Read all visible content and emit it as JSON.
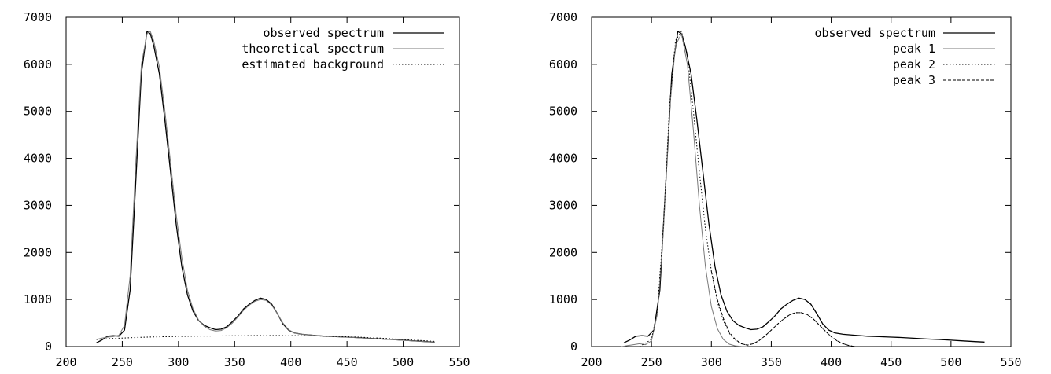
{
  "chart_data": [
    {
      "type": "line",
      "title": "",
      "xlabel": "",
      "ylabel": "",
      "xlim": [
        200,
        550
      ],
      "ylim": [
        0,
        7000
      ],
      "x_ticks": [
        200,
        250,
        300,
        350,
        400,
        450,
        500,
        550
      ],
      "y_ticks": [
        0,
        1000,
        2000,
        3000,
        4000,
        5000,
        6000,
        7000
      ],
      "grid": false,
      "legend_position": "top-right",
      "series": [
        {
          "name": "observed spectrum",
          "style": "solid",
          "color": "#000000",
          "x": [
            227,
            232,
            237,
            242,
            247,
            252,
            257,
            262,
            267,
            272,
            275,
            278,
            283,
            288,
            293,
            298,
            303,
            308,
            313,
            318,
            323,
            328,
            333,
            338,
            343,
            348,
            353,
            358,
            363,
            368,
            373,
            378,
            383,
            388,
            393,
            398,
            403,
            410,
            420,
            430,
            440,
            450,
            460,
            470,
            480,
            490,
            500,
            510,
            520,
            528
          ],
          "y": [
            80,
            140,
            220,
            230,
            220,
            350,
            1200,
            3500,
            5800,
            6700,
            6650,
            6400,
            5800,
            4800,
            3700,
            2600,
            1700,
            1100,
            750,
            550,
            450,
            400,
            360,
            370,
            420,
            530,
            650,
            800,
            900,
            980,
            1030,
            1000,
            900,
            700,
            480,
            350,
            290,
            260,
            240,
            220,
            210,
            200,
            190,
            175,
            160,
            150,
            135,
            120,
            105,
            95
          ]
        },
        {
          "name": "theoretical spectrum",
          "style": "solid-thin",
          "color": "#7a7a7a",
          "x": [
            227,
            232,
            237,
            242,
            247,
            252,
            257,
            262,
            267,
            272,
            275,
            278,
            283,
            288,
            293,
            298,
            303,
            308,
            313,
            318,
            323,
            328,
            333,
            338,
            343,
            348,
            353,
            358,
            363,
            368,
            373,
            378,
            383,
            388,
            393,
            398,
            403,
            410,
            420,
            430,
            440,
            450,
            460,
            470,
            480,
            490,
            500,
            510,
            520,
            528
          ],
          "y": [
            150,
            180,
            200,
            210,
            240,
            450,
            1500,
            3900,
            6000,
            6650,
            6700,
            6500,
            5950,
            5000,
            3900,
            2800,
            1900,
            1200,
            800,
            560,
            430,
            360,
            330,
            340,
            400,
            500,
            630,
            770,
            880,
            960,
            1000,
            980,
            880,
            700,
            500,
            360,
            290,
            260,
            240,
            220,
            210,
            200,
            188,
            172,
            158,
            145,
            132,
            118,
            105,
            95
          ]
        },
        {
          "name": "estimated background",
          "style": "dotted",
          "color": "#000000",
          "x": [
            227,
            240,
            250,
            260,
            270,
            280,
            290,
            300,
            320,
            340,
            360,
            380,
            400,
            420,
            440,
            460,
            480,
            500,
            528
          ],
          "y": [
            150,
            170,
            180,
            190,
            198,
            205,
            210,
            215,
            222,
            228,
            232,
            234,
            233,
            228,
            218,
            200,
            178,
            150,
            110
          ]
        }
      ]
    },
    {
      "type": "line",
      "title": "",
      "xlabel": "",
      "ylabel": "",
      "xlim": [
        200,
        550
      ],
      "ylim": [
        0,
        7000
      ],
      "x_ticks": [
        200,
        250,
        300,
        350,
        400,
        450,
        500,
        550
      ],
      "y_ticks": [
        0,
        1000,
        2000,
        3000,
        4000,
        5000,
        6000,
        7000
      ],
      "grid": false,
      "legend_position": "top-right",
      "series": [
        {
          "name": "observed spectrum",
          "style": "solid",
          "color": "#000000",
          "x": [
            227,
            232,
            237,
            242,
            247,
            252,
            257,
            262,
            267,
            272,
            275,
            278,
            283,
            288,
            293,
            298,
            303,
            308,
            313,
            318,
            323,
            328,
            333,
            338,
            343,
            348,
            353,
            358,
            363,
            368,
            373,
            378,
            383,
            388,
            393,
            398,
            403,
            410,
            420,
            430,
            440,
            450,
            460,
            470,
            480,
            490,
            500,
            510,
            520,
            528
          ],
          "y": [
            80,
            140,
            220,
            230,
            220,
            350,
            1200,
            3500,
            5800,
            6700,
            6650,
            6400,
            5800,
            4800,
            3700,
            2600,
            1700,
            1100,
            750,
            550,
            450,
            400,
            360,
            370,
            420,
            530,
            650,
            800,
            900,
            980,
            1030,
            1000,
            900,
            700,
            480,
            350,
            290,
            260,
            240,
            220,
            210,
            200,
            190,
            175,
            160,
            150,
            135,
            120,
            105,
            95
          ]
        },
        {
          "name": "peak 1",
          "style": "solid-thin",
          "color": "#7a7a7a",
          "x": [
            225,
            230,
            235,
            240,
            245,
            250,
            255,
            260,
            265,
            270,
            275,
            280,
            285,
            290,
            295,
            300,
            305,
            310,
            315,
            320,
            325,
            330
          ],
          "y": [
            0,
            20,
            40,
            60,
            40,
            120,
            700,
            2500,
            5000,
            6400,
            6650,
            6000,
            4600,
            3000,
            1700,
            850,
            380,
            150,
            50,
            15,
            5,
            0
          ]
        },
        {
          "name": "peak 2",
          "style": "dotted",
          "color": "#000000",
          "x": [
            240,
            250,
            255,
            260,
            265,
            270,
            275,
            280,
            285,
            290,
            295,
            300,
            305,
            310,
            315,
            320,
            325,
            330,
            335,
            340,
            345,
            350,
            355,
            360,
            365,
            370,
            375,
            380,
            385,
            390,
            395,
            400,
            405,
            410,
            415,
            420
          ],
          "y": [
            0,
            150,
            800,
            2600,
            5100,
            6500,
            6700,
            6200,
            5000,
            3700,
            2500,
            1600,
            950,
            550,
            280,
            130,
            60,
            30,
            60,
            130,
            230,
            350,
            470,
            580,
            670,
            720,
            720,
            680,
            590,
            460,
            330,
            210,
            120,
            60,
            20,
            0
          ]
        },
        {
          "name": "peak 3",
          "style": "dashed",
          "color": "#000000",
          "x": [
            300,
            305,
            310,
            315,
            320,
            325,
            330,
            335,
            340,
            345,
            350,
            355,
            360,
            365,
            370,
            375,
            380,
            385,
            390,
            395,
            400,
            405,
            410,
            415,
            420
          ],
          "y": [
            1600,
            1000,
            600,
            300,
            150,
            60,
            30,
            60,
            130,
            230,
            350,
            470,
            580,
            670,
            720,
            720,
            680,
            590,
            460,
            330,
            210,
            120,
            60,
            20,
            0
          ]
        }
      ]
    }
  ]
}
